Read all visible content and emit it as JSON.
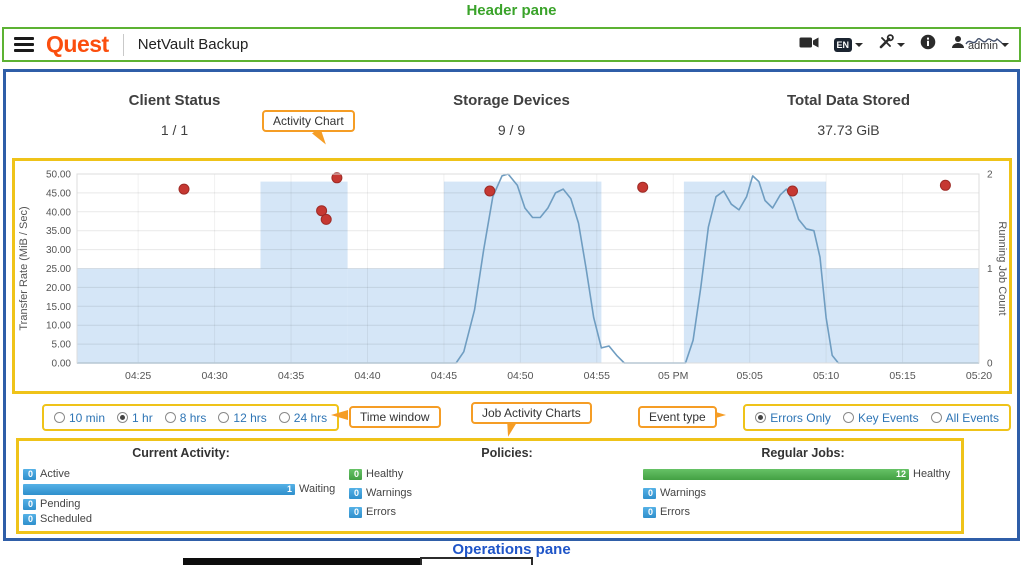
{
  "annotations": {
    "header_pane_label": "Header pane",
    "operations_pane_label": "Operations pane",
    "callouts": {
      "activity_chart": "Activity Chart",
      "time_window": "Time window",
      "job_activity_charts": "Job Activity Charts",
      "event_type": "Event type"
    },
    "colors": {
      "header_border": "#5cb233",
      "main_border": "#2f5ea8",
      "highlight_border": "#efc319",
      "callout_border": "#f59d25",
      "header_label": "#3aa32a",
      "operations_label": "#1f55c8"
    }
  },
  "header": {
    "logo_text": "Quest",
    "app_title": "NetVault Backup",
    "language_badge": "EN",
    "user_name": "admin"
  },
  "summary": {
    "client_status": {
      "label": "Client Status",
      "value": "1 / 1"
    },
    "storage_devices": {
      "label": "Storage Devices",
      "value": "9 / 9"
    },
    "total_data_stored": {
      "label": "Total Data Stored",
      "value": "37.73 GiB"
    }
  },
  "time_window": {
    "options": [
      {
        "label": "10 min",
        "selected": false
      },
      {
        "label": "1 hr",
        "selected": true
      },
      {
        "label": "8 hrs",
        "selected": false
      },
      {
        "label": "12 hrs",
        "selected": false
      },
      {
        "label": "24 hrs",
        "selected": false
      }
    ]
  },
  "event_type": {
    "options": [
      {
        "label": "Errors Only",
        "selected": true
      },
      {
        "label": "Key Events",
        "selected": false
      },
      {
        "label": "All Events",
        "selected": false
      }
    ]
  },
  "chart_data": {
    "type": "line",
    "x_axis": {
      "domain_minutes": [
        21,
        80
      ],
      "ticks": [
        {
          "label": "04:25",
          "t": 25
        },
        {
          "label": "04:30",
          "t": 30
        },
        {
          "label": "04:35",
          "t": 35
        },
        {
          "label": "04:40",
          "t": 40
        },
        {
          "label": "04:45",
          "t": 45
        },
        {
          "label": "04:50",
          "t": 50
        },
        {
          "label": "04:55",
          "t": 55
        },
        {
          "label": "05 PM",
          "t": 60
        },
        {
          "label": "05:05",
          "t": 65
        },
        {
          "label": "05:10",
          "t": 70
        },
        {
          "label": "05:15",
          "t": 75
        },
        {
          "label": "05:20",
          "t": 80
        }
      ]
    },
    "y_left": {
      "label": "Transfer Rate (MiB / Sec)",
      "range": [
        0,
        50
      ],
      "tick_values": [
        0,
        5,
        10,
        15,
        20,
        25,
        30,
        35,
        40,
        45,
        50
      ],
      "tick_labels": [
        "0.00",
        "5.00",
        "10.00",
        "15.00",
        "20.00",
        "25.00",
        "30.00",
        "35.00",
        "40.00",
        "45.00",
        "50.00"
      ]
    },
    "y_right": {
      "label": "Running Job Count",
      "range": [
        0,
        2
      ],
      "ticks": [
        0,
        1,
        2
      ]
    },
    "series": {
      "transfer_rate_line": {
        "name": "Transfer Rate",
        "color": "#6f9dc1",
        "points": [
          [
            21,
            0
          ],
          [
            30,
            0
          ],
          [
            40,
            0
          ],
          [
            44,
            0
          ],
          [
            45.8,
            0
          ],
          [
            46.3,
            3
          ],
          [
            47,
            14
          ],
          [
            47.6,
            30
          ],
          [
            48.2,
            44
          ],
          [
            48.8,
            49.5
          ],
          [
            49.2,
            50
          ],
          [
            49.8,
            47
          ],
          [
            50.3,
            41
          ],
          [
            50.8,
            38.5
          ],
          [
            51.3,
            38.5
          ],
          [
            51.8,
            41
          ],
          [
            52.3,
            45
          ],
          [
            52.8,
            46
          ],
          [
            53.3,
            43.5
          ],
          [
            53.8,
            37
          ],
          [
            54.3,
            25
          ],
          [
            54.8,
            12
          ],
          [
            55.3,
            4
          ],
          [
            55.8,
            4.5
          ],
          [
            56.3,
            2
          ],
          [
            56.8,
            0
          ],
          [
            58,
            0
          ],
          [
            60.8,
            0
          ],
          [
            61.3,
            6
          ],
          [
            61.8,
            20
          ],
          [
            62.3,
            36
          ],
          [
            62.8,
            44
          ],
          [
            63.3,
            45.5
          ],
          [
            63.8,
            42
          ],
          [
            64.3,
            40.5
          ],
          [
            64.8,
            44
          ],
          [
            65.2,
            49.5
          ],
          [
            65.6,
            48
          ],
          [
            66,
            43
          ],
          [
            66.5,
            41
          ],
          [
            67,
            44.5
          ],
          [
            67.4,
            46
          ],
          [
            67.8,
            43
          ],
          [
            68.2,
            38
          ],
          [
            68.7,
            35.5
          ],
          [
            69.2,
            35
          ],
          [
            69.6,
            28
          ],
          [
            70,
            12
          ],
          [
            70.4,
            2
          ],
          [
            70.8,
            0
          ],
          [
            73,
            0
          ],
          [
            80,
            0
          ]
        ]
      },
      "running_job_count_area": {
        "name": "Running Job Count",
        "color": "#d5e6f7",
        "segments": [
          {
            "from": 21,
            "to": 33,
            "count": 1
          },
          {
            "from": 33,
            "to": 38.7,
            "count": 2
          },
          {
            "from": 38.7,
            "to": 45,
            "count": 1
          },
          {
            "from": 45,
            "to": 55.3,
            "count": 2
          },
          {
            "from": 55.3,
            "to": 60.7,
            "count": 0
          },
          {
            "from": 60.7,
            "to": 70,
            "count": 2
          },
          {
            "from": 70,
            "to": 80,
            "count": 1
          }
        ]
      },
      "error_events": {
        "name": "Error Events",
        "color": "#c63832",
        "points": [
          [
            28,
            46
          ],
          [
            37,
            40.3
          ],
          [
            37.3,
            38
          ],
          [
            38,
            49
          ],
          [
            48,
            45.5
          ],
          [
            58,
            46.5
          ],
          [
            67.8,
            45.5
          ],
          [
            77.8,
            47
          ]
        ]
      }
    }
  },
  "operations": {
    "current_activity": {
      "title": "Current Activity:",
      "rows": [
        {
          "label": "Active",
          "value": 0,
          "color": "blue"
        },
        {
          "label": "Waiting",
          "value": 1,
          "color": "blue"
        },
        {
          "label": "Pending",
          "value": 0,
          "color": "blue"
        },
        {
          "label": "Scheduled",
          "value": 0,
          "color": "blue"
        }
      ]
    },
    "policies": {
      "title": "Policies:",
      "rows": [
        {
          "label": "Healthy",
          "value": 0,
          "color": "green"
        },
        {
          "label": "Warnings",
          "value": 0,
          "color": "blue"
        },
        {
          "label": "Errors",
          "value": 0,
          "color": "blue"
        }
      ]
    },
    "regular_jobs": {
      "title": "Regular Jobs:",
      "rows": [
        {
          "label": "Healthy",
          "value": 12,
          "color": "green"
        },
        {
          "label": "Warnings",
          "value": 0,
          "color": "blue"
        },
        {
          "label": "Errors",
          "value": 0,
          "color": "blue"
        }
      ]
    }
  }
}
